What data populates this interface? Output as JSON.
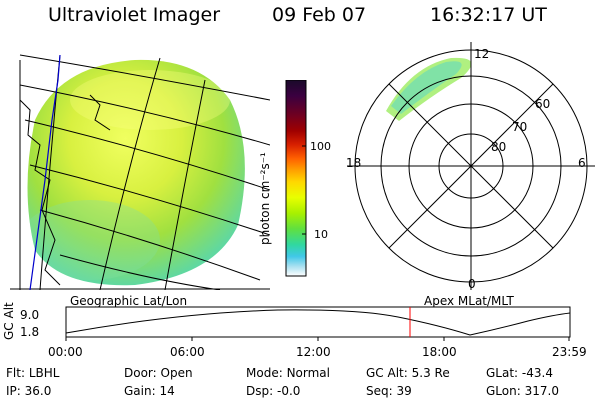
{
  "header": {
    "title": "Ultraviolet Imager",
    "date": "09 Feb 07",
    "time": "16:32:17 UT"
  },
  "colorbar": {
    "unit_label": "photon cm⁻²s⁻¹",
    "tick_labels": [
      "100",
      "10"
    ],
    "colors_top_to_bottom": [
      "#1a0a2a",
      "#3a0040",
      "#700020",
      "#a00000",
      "#d82000",
      "#ff6000",
      "#ffa000",
      "#ffd800",
      "#e8ff00",
      "#a8f000",
      "#60e040",
      "#30d8a0",
      "#40c8e8",
      "#a8e0f0",
      "#ffffff"
    ]
  },
  "polar_plot": {
    "mlt_labels": {
      "top": "12",
      "left": "18",
      "right": "6",
      "bottom": "0"
    },
    "lat_labels": [
      "60",
      "70",
      "80"
    ]
  },
  "altitude_plot": {
    "left_caption": "Geographic Lat/Lon",
    "right_caption": "Apex MLat/MLT",
    "axis_label": "GC Alt",
    "y_ticks": [
      "9.0",
      "1.8"
    ],
    "x_ticks": [
      "00:00",
      "06:00",
      "12:00",
      "18:00",
      "23:59"
    ],
    "current_time_marker_color": "#ff0000"
  },
  "footer": {
    "row1": [
      {
        "label": "Flt:",
        "value": "LBHL"
      },
      {
        "label": "Door:",
        "value": "Open"
      },
      {
        "label": "Mode:",
        "value": "Normal"
      },
      {
        "label": "GC Alt:",
        "value": "5.3 Re"
      },
      {
        "label": "GLat:",
        "value": "-43.4"
      }
    ],
    "row2": [
      {
        "label": "IP:",
        "value": "36.0"
      },
      {
        "label": "Gain:",
        "value": "14"
      },
      {
        "label": "Dsp:",
        "value": "-0.0"
      },
      {
        "label": "Seq:",
        "value": "39"
      },
      {
        "label": "GLon:",
        "value": "317.0"
      }
    ]
  }
}
